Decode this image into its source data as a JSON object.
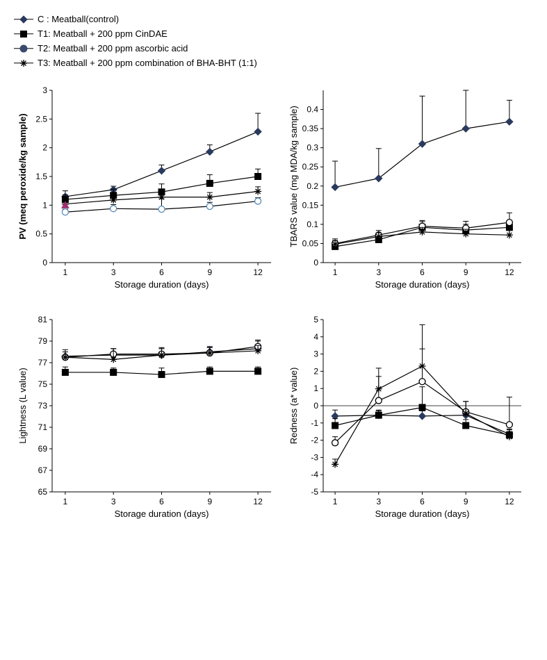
{
  "legend": {
    "items": [
      {
        "label": "C : Meatball(control)",
        "marker": "diamond-filled",
        "color": "#2a3a5e"
      },
      {
        "label": "T1: Meatball + 200 ppm CinDAE",
        "marker": "square-filled",
        "color": "#000000"
      },
      {
        "label": "T2: Meatball + 200 ppm ascorbic acid",
        "marker": "circle-filled",
        "color": "#3a4a6e"
      },
      {
        "label": "T3: Meatball + 200 ppm combination of BHA-BHT (1:1)",
        "marker": "asterisk",
        "color": "#000000"
      }
    ]
  },
  "charts": {
    "pv": {
      "type": "line",
      "ylabel": "PV (meq peroxide/kg sample)",
      "ylabel_bold": true,
      "xlabel": "Storage duration (days)",
      "xticks": [
        1,
        3,
        6,
        9,
        12
      ],
      "yticks": [
        0,
        0.5,
        1,
        1.5,
        2,
        2.5,
        3
      ],
      "ylim": [
        0,
        3
      ],
      "series": [
        {
          "name": "C",
          "marker": "diamond-filled",
          "color": "#2a3a5e",
          "data": [
            1.15,
            1.27,
            1.6,
            1.93,
            2.28
          ],
          "err": [
            0.1,
            0.06,
            0.1,
            0.12,
            0.32
          ]
        },
        {
          "name": "T1",
          "marker": "square-filled",
          "color": "#000000",
          "data": [
            1.1,
            1.17,
            1.23,
            1.38,
            1.5
          ],
          "err": [
            0.08,
            0.11,
            0.14,
            0.15,
            0.13
          ]
        },
        {
          "name": "T2",
          "marker": "circle-open",
          "color": "#5b8bb8",
          "data": [
            0.88,
            0.94,
            0.93,
            0.98,
            1.07
          ],
          "err": [
            0.05,
            0.07,
            0.18,
            0.07,
            0.06
          ]
        },
        {
          "name": "T3",
          "marker": "asterisk",
          "color": "#000000",
          "data": [
            1.02,
            1.09,
            1.14,
            1.14,
            1.24
          ],
          "err": [
            0.06,
            0.06,
            0.08,
            0.08,
            0.08
          ]
        }
      ],
      "extra_points": [
        {
          "x": 1,
          "y": 1.0,
          "marker": "triangle",
          "color": "#a03070"
        }
      ]
    },
    "tbars": {
      "type": "line",
      "ylabel": "TBARS value (mg MDA/kg sample)",
      "ylabel_bold": false,
      "xlabel": "Storage duration (days)",
      "xticks": [
        1,
        3,
        6,
        9,
        12
      ],
      "yticks": [
        0,
        0.05,
        0.1,
        0.15,
        0.2,
        0.25,
        0.3,
        0.35,
        0.4
      ],
      "ylim": [
        0,
        0.45
      ],
      "series": [
        {
          "name": "C",
          "marker": "diamond-filled",
          "color": "#2a3a5e",
          "data": [
            0.197,
            0.22,
            0.31,
            0.35,
            0.368
          ],
          "err": [
            0.068,
            0.078,
            0.125,
            0.1,
            0.056
          ]
        },
        {
          "name": "T1",
          "marker": "square-filled",
          "color": "#000000",
          "data": [
            0.042,
            0.06,
            0.092,
            0.085,
            0.092
          ],
          "err": [
            0.01,
            0.01,
            0.015,
            0.015,
            0.015
          ]
        },
        {
          "name": "T2",
          "marker": "circle-open",
          "color": "#000000",
          "data": [
            0.05,
            0.072,
            0.095,
            0.09,
            0.105
          ],
          "err": [
            0.012,
            0.012,
            0.015,
            0.018,
            0.025
          ]
        },
        {
          "name": "T3",
          "marker": "asterisk",
          "color": "#000000",
          "data": [
            0.048,
            0.068,
            0.08,
            0.075,
            0.072
          ],
          "err": [
            0.01,
            0.01,
            0.012,
            0.012,
            0.012
          ]
        }
      ]
    },
    "lightness": {
      "type": "line",
      "ylabel": "Lightness (L value)",
      "ylabel_bold": false,
      "xlabel": "Storage duration (days)",
      "xticks": [
        1,
        3,
        6,
        9,
        12
      ],
      "yticks": [
        65,
        67,
        69,
        71,
        73,
        75,
        77,
        79,
        81
      ],
      "ylim": [
        65,
        81
      ],
      "series": [
        {
          "name": "C",
          "marker": "diamond-filled",
          "color": "#2a3a5e",
          "data": [
            77.6,
            77.7,
            77.7,
            78.0,
            78.3
          ],
          "err": [
            0.6,
            0.6,
            0.7,
            0.5,
            0.7
          ]
        },
        {
          "name": "T1",
          "marker": "square-filled",
          "color": "#000000",
          "data": [
            76.1,
            76.1,
            75.9,
            76.2,
            76.2
          ],
          "err": [
            0.5,
            0.4,
            0.6,
            0.4,
            0.4
          ]
        },
        {
          "name": "T2",
          "marker": "circle-open",
          "color": "#000000",
          "data": [
            77.5,
            77.8,
            77.8,
            77.9,
            78.5
          ],
          "err": [
            0.5,
            0.5,
            0.5,
            0.5,
            0.6
          ]
        },
        {
          "name": "T3",
          "marker": "asterisk",
          "color": "#000000",
          "data": [
            77.5,
            77.3,
            77.7,
            77.9,
            78.1
          ],
          "err": [
            0.5,
            1.0,
            0.6,
            0.5,
            0.5
          ]
        }
      ]
    },
    "redness": {
      "type": "line",
      "ylabel": "Redness (a* value)",
      "ylabel_bold": false,
      "xlabel": "Storage duration (days)",
      "xticks": [
        1,
        3,
        6,
        9,
        12
      ],
      "yticks": [
        -5,
        -4,
        -3,
        -2,
        -1,
        0,
        1,
        2,
        3,
        4,
        5
      ],
      "ylim": [
        -5,
        5
      ],
      "zero_line": true,
      "series": [
        {
          "name": "C",
          "marker": "diamond-filled",
          "color": "#2a3a5e",
          "data": [
            -0.6,
            -0.55,
            -0.6,
            -0.55,
            -1.65
          ],
          "err": [
            0.35,
            0.25,
            0.3,
            0.25,
            0.3
          ]
        },
        {
          "name": "T1",
          "marker": "square-filled",
          "color": "#000000",
          "data": [
            -1.15,
            -0.55,
            -0.1,
            -1.15,
            -1.7
          ],
          "err": [
            0.4,
            0.3,
            1.2,
            0.35,
            0.3
          ]
        },
        {
          "name": "T2",
          "marker": "circle-open",
          "color": "#000000",
          "data": [
            -2.15,
            0.3,
            1.4,
            -0.35,
            -1.1
          ],
          "err": [
            0.35,
            1.4,
            1.9,
            0.6,
            1.6
          ]
        },
        {
          "name": "T3",
          "marker": "asterisk",
          "color": "#000000",
          "data": [
            -3.4,
            0.98,
            2.3,
            -0.45,
            -1.8
          ],
          "err": [
            0.3,
            1.2,
            2.4,
            0.7,
            0.3
          ]
        }
      ]
    }
  },
  "style": {
    "axis_color": "#000000",
    "line_width": 1.2,
    "marker_size": 5,
    "font_size": 12,
    "background": "#ffffff",
    "error_cap_width": 4
  }
}
